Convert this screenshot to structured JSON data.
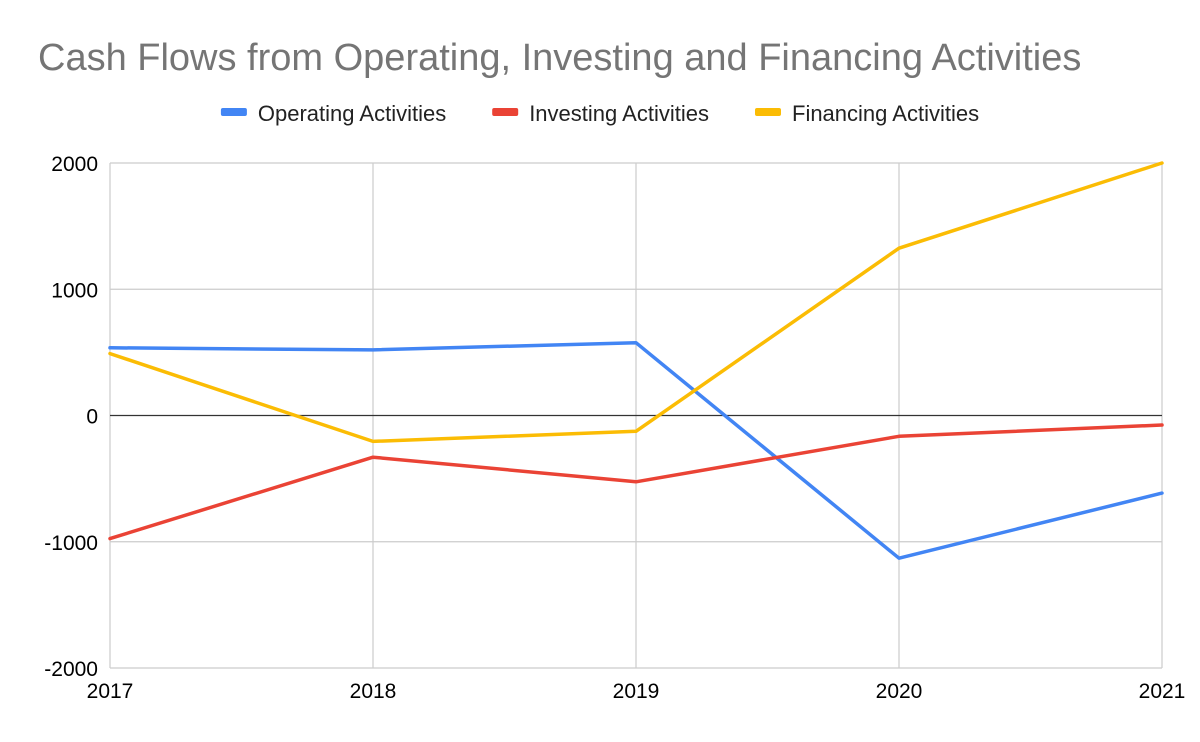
{
  "chart_data": {
    "type": "line",
    "title": "Cash Flows from Operating, Investing and Financing Activities",
    "xlabel": "",
    "ylabel": "",
    "categories": [
      "2017",
      "2018",
      "2019",
      "2020",
      "2021"
    ],
    "ylim": [
      -2000,
      2000
    ],
    "yticks": [
      2000,
      1000,
      0,
      -1000,
      -2000
    ],
    "grid": true,
    "legend_position": "top",
    "series": [
      {
        "name": "Operating Activities",
        "color": "#4285f4",
        "values": [
          536,
          520,
          577,
          -1130,
          -615
        ]
      },
      {
        "name": "Investing Activities",
        "color": "#ea4335",
        "values": [
          -975,
          -330,
          -525,
          -165,
          -75
        ]
      },
      {
        "name": "Financing Activities",
        "color": "#fbbc04",
        "values": [
          490,
          -205,
          -125,
          1325,
          2000
        ]
      }
    ]
  }
}
